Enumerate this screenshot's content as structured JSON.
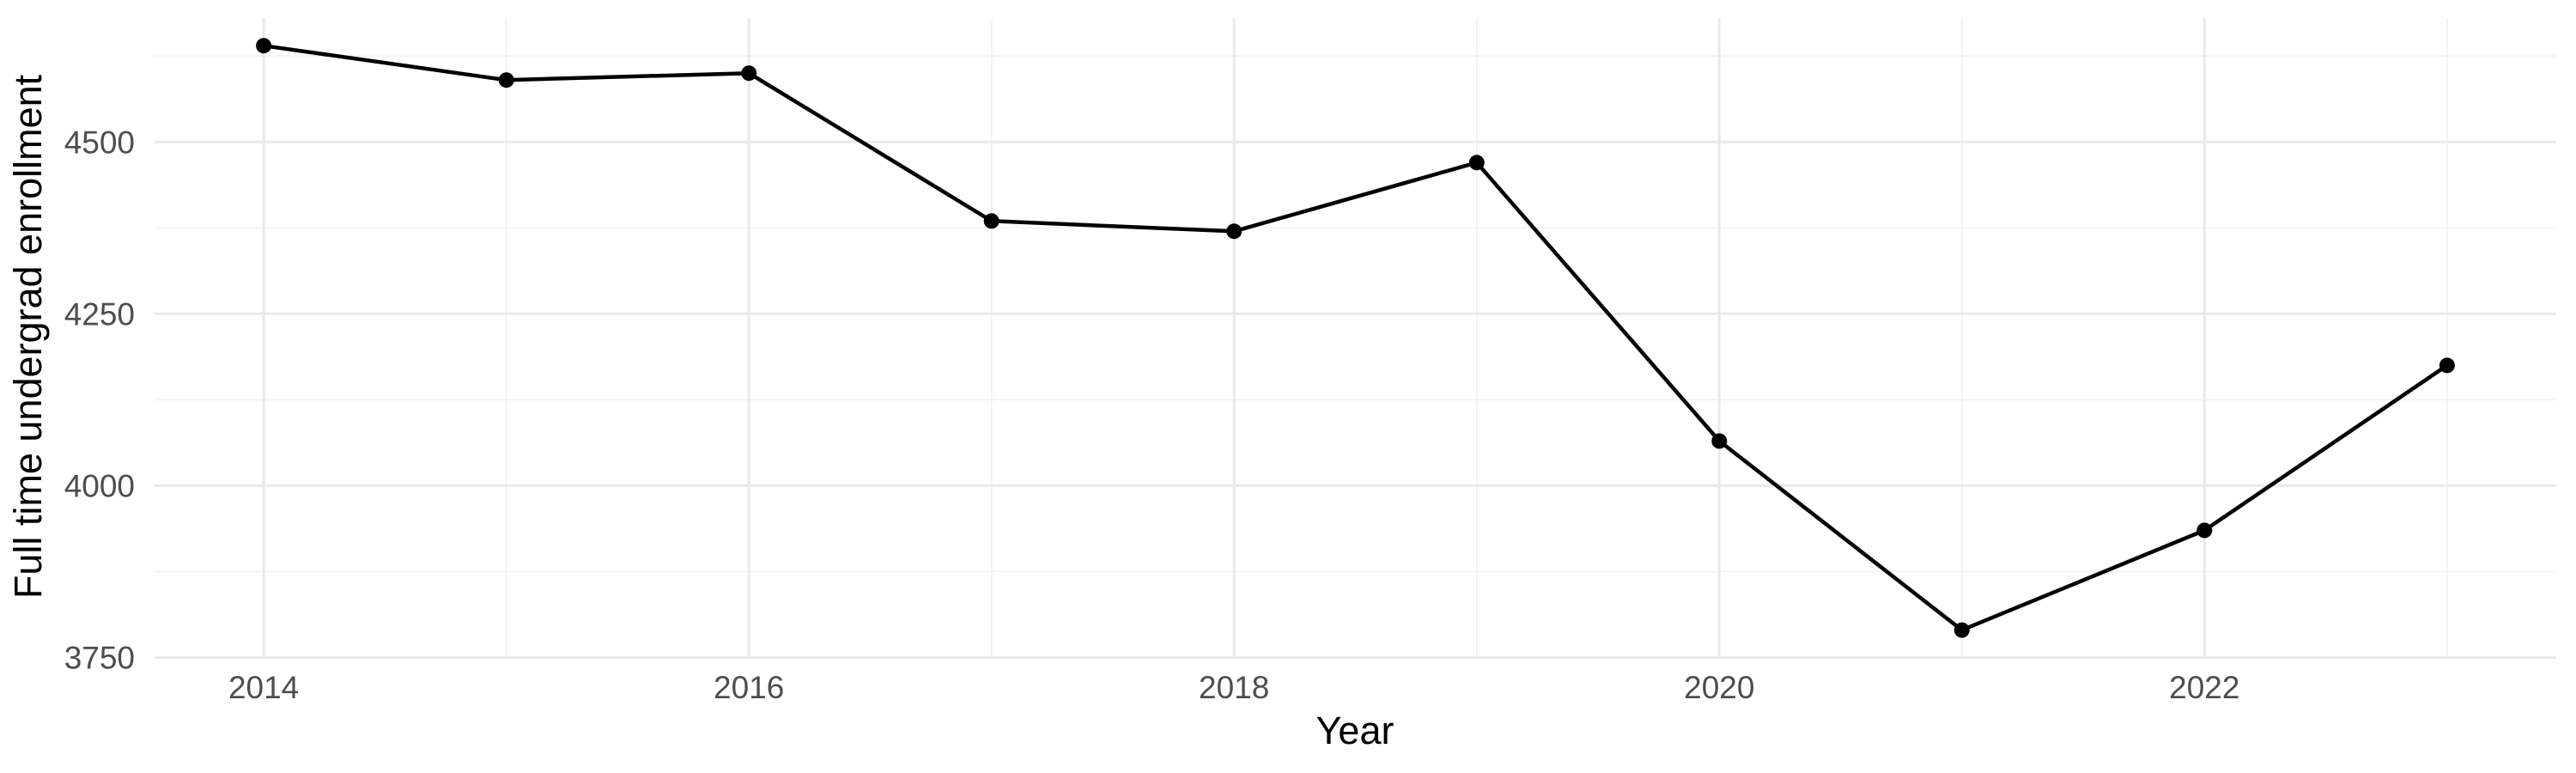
{
  "chart_data": {
    "type": "line",
    "title": "",
    "xlabel": "Year",
    "ylabel": "Full time undergrad enrollment",
    "x": [
      2014,
      2015,
      2016,
      2017,
      2018,
      2019,
      2020,
      2021,
      2022,
      2023
    ],
    "series": [
      {
        "name": "Full time undergrad enrollment",
        "values": [
          4640,
          4590,
          4600,
          4385,
          4370,
          4470,
          4065,
          3790,
          3935,
          4175
        ]
      }
    ],
    "xlim": [
      2013.55,
      2023.45
    ],
    "ylim": [
      3750.75,
      4680.25
    ],
    "x_ticks_major": [
      2014,
      2016,
      2018,
      2020,
      2022
    ],
    "x_ticks_minor": [
      2015,
      2017,
      2019,
      2021,
      2023
    ],
    "y_ticks_major": [
      4500,
      4250,
      4000,
      3750
    ],
    "y_ticks_minor": [
      4625,
      4375,
      4125,
      3875
    ],
    "grid": "major-and-minor",
    "legend_position": "none",
    "marker": "filled-circle",
    "colors": {
      "line": "#000000",
      "point": "#000000",
      "grid_major": "#e9e9e9",
      "grid_minor": "#f1f1f1",
      "tick_label": "#4d4d4d",
      "axis_title": "#000000",
      "background": "#ffffff"
    }
  }
}
